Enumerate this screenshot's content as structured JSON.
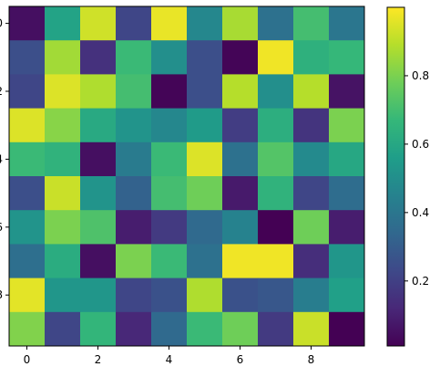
{
  "chart_data": {
    "type": "heatmap",
    "title": "",
    "xlabel": "",
    "ylabel": "",
    "colormap": "viridis",
    "rows": 10,
    "cols": 10,
    "x_ticks": [
      0,
      2,
      4,
      6,
      8
    ],
    "y_ticks": [
      0,
      2,
      4,
      6,
      8
    ],
    "x_tick_labels": [
      "0",
      "2",
      "4",
      "6",
      "8"
    ],
    "y_tick_labels": [
      "0",
      "2",
      "4",
      "6",
      "8"
    ],
    "colorbar": {
      "range": [
        0.01,
        1.0
      ],
      "ticks": [
        0.2,
        0.4,
        0.6,
        0.8
      ],
      "tick_labels": [
        "0.2",
        "0.4",
        "0.6",
        "0.8"
      ]
    },
    "values": [
      [
        0.05,
        0.58,
        0.93,
        0.22,
        0.97,
        0.47,
        0.87,
        0.38,
        0.7,
        0.4
      ],
      [
        0.25,
        0.86,
        0.15,
        0.68,
        0.5,
        0.25,
        0.02,
        0.98,
        0.64,
        0.67
      ],
      [
        0.22,
        0.95,
        0.88,
        0.7,
        0.02,
        0.25,
        0.89,
        0.5,
        0.89,
        0.06
      ],
      [
        0.95,
        0.82,
        0.61,
        0.52,
        0.47,
        0.55,
        0.19,
        0.63,
        0.16,
        0.8
      ],
      [
        0.68,
        0.65,
        0.05,
        0.42,
        0.68,
        0.95,
        0.38,
        0.73,
        0.48,
        0.6
      ],
      [
        0.25,
        0.92,
        0.52,
        0.32,
        0.7,
        0.78,
        0.08,
        0.65,
        0.22,
        0.36
      ],
      [
        0.52,
        0.8,
        0.72,
        0.09,
        0.18,
        0.35,
        0.45,
        0.01,
        0.78,
        0.09
      ],
      [
        0.37,
        0.62,
        0.05,
        0.8,
        0.68,
        0.38,
        0.98,
        0.98,
        0.14,
        0.53
      ],
      [
        0.96,
        0.53,
        0.53,
        0.22,
        0.26,
        0.88,
        0.26,
        0.28,
        0.43,
        0.57
      ],
      [
        0.81,
        0.22,
        0.66,
        0.12,
        0.35,
        0.68,
        0.78,
        0.18,
        0.92,
        0.01
      ]
    ]
  }
}
